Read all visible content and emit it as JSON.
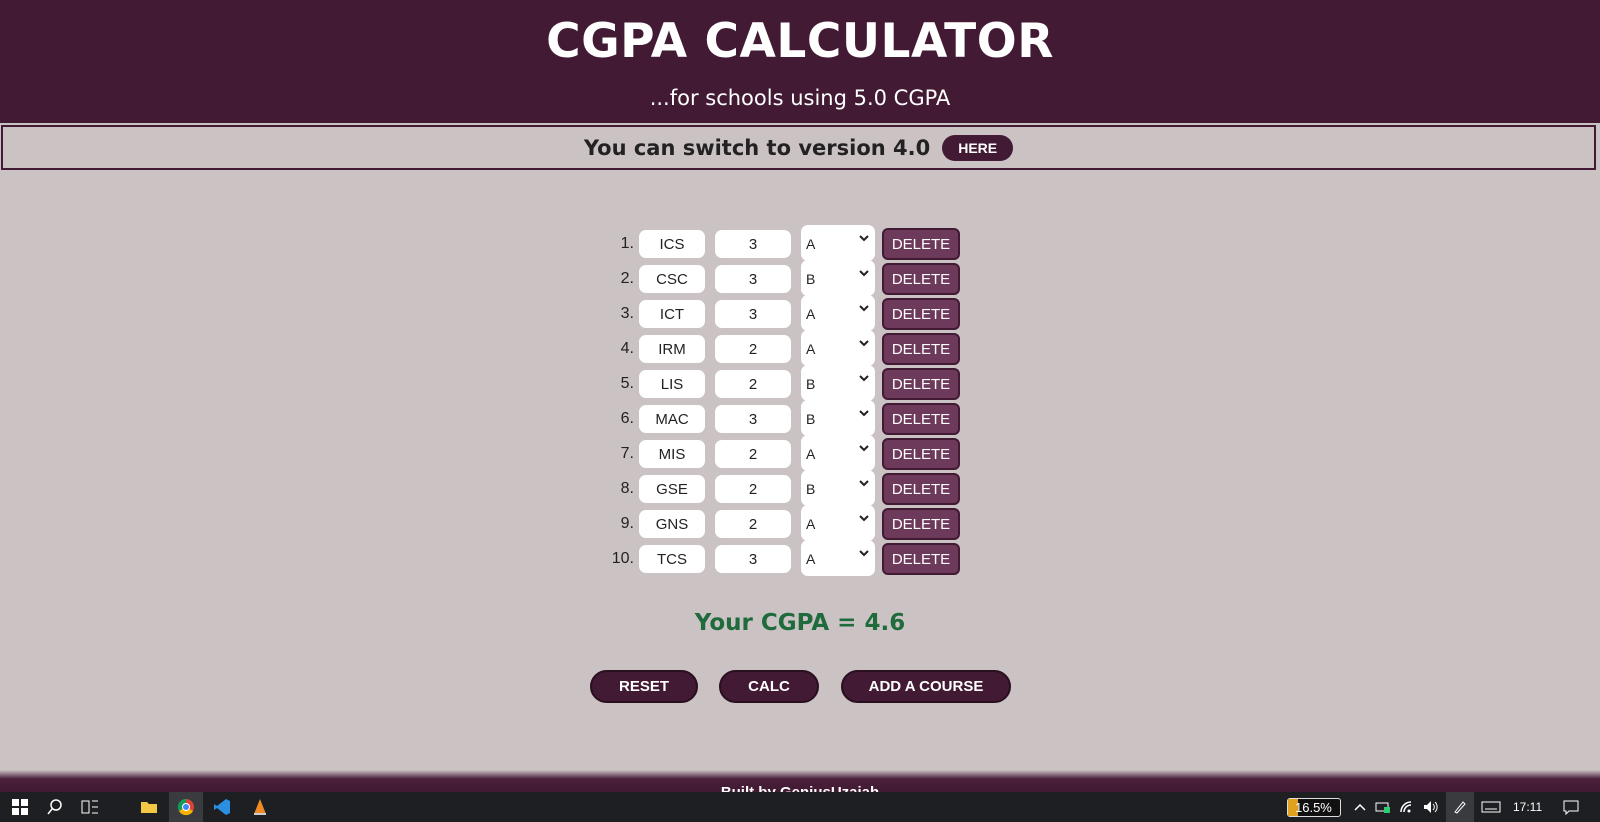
{
  "header": {
    "title": "CGPA CALCULATOR",
    "subtitle": "...for schools using 5.0 CGPA"
  },
  "switch": {
    "text": "You can switch to version 4.0",
    "button": "HERE"
  },
  "courses": [
    {
      "num": "1.",
      "name": "ICS",
      "units": "3",
      "grade": "A"
    },
    {
      "num": "2.",
      "name": "CSC",
      "units": "3",
      "grade": "B"
    },
    {
      "num": "3.",
      "name": "ICT",
      "units": "3",
      "grade": "A"
    },
    {
      "num": "4.",
      "name": "IRM",
      "units": "2",
      "grade": "A"
    },
    {
      "num": "5.",
      "name": "LIS",
      "units": "2",
      "grade": "B"
    },
    {
      "num": "6.",
      "name": "MAC",
      "units": "3",
      "grade": "B"
    },
    {
      "num": "7.",
      "name": "MIS",
      "units": "2",
      "grade": "A"
    },
    {
      "num": "8.",
      "name": "GSE",
      "units": "2",
      "grade": "B"
    },
    {
      "num": "9.",
      "name": "GNS",
      "units": "2",
      "grade": "A"
    },
    {
      "num": "10.",
      "name": "TCS",
      "units": "3",
      "grade": "A"
    }
  ],
  "delete_label": "DELETE",
  "result": "Your CGPA = 4.6",
  "actions": {
    "reset": "RESET",
    "calc": "CALC",
    "add": "ADD A COURSE"
  },
  "footer": {
    "text": "Built by GeniusUzaiah"
  },
  "taskbar": {
    "battery_percent": "16.5%",
    "time": "17:11"
  }
}
